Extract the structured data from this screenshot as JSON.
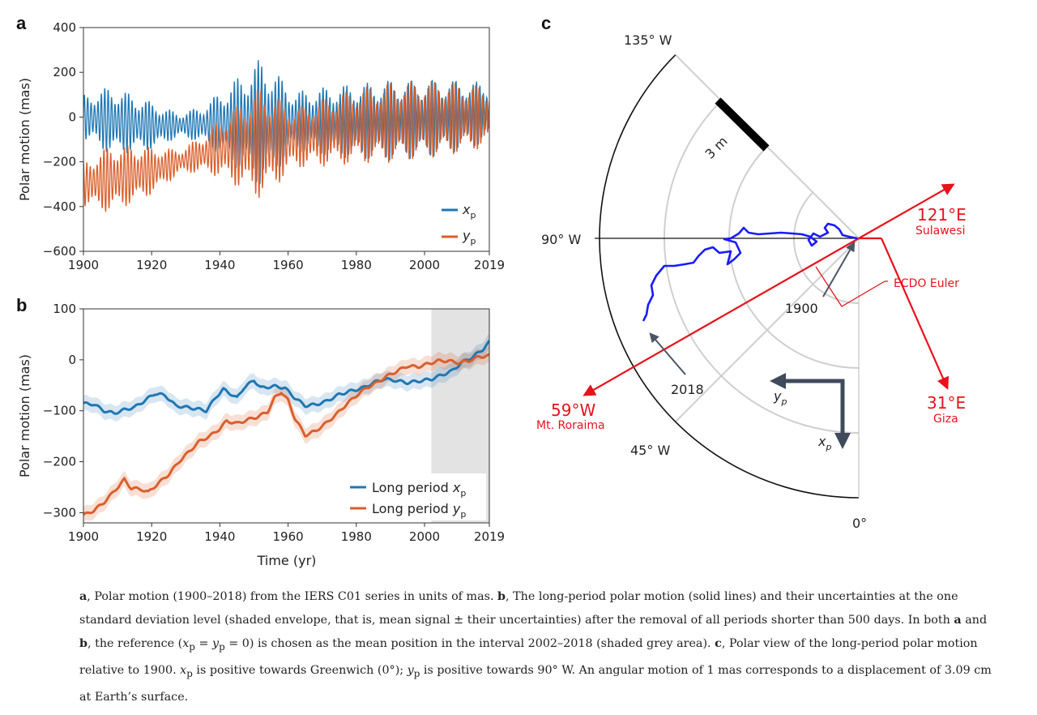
{
  "panels": {
    "a": {
      "letter": "a",
      "ylabel": "Polar motion (mas)",
      "yticks": [
        "400",
        "200",
        "0",
        "−200",
        "−400",
        "−600"
      ],
      "xticks": [
        "1900",
        "1920",
        "1940",
        "1960",
        "1980",
        "2000",
        "2019"
      ],
      "legend": [
        {
          "symbol": "x",
          "sub": "p",
          "color": "#1f77b4"
        },
        {
          "symbol": "y",
          "sub": "p",
          "color": "#d95f2b"
        }
      ]
    },
    "b": {
      "letter": "b",
      "ylabel": "Polar motion (mas)",
      "xlabel": "Time (yr)",
      "yticks": [
        "100",
        "0",
        "−100",
        "−200",
        "−300"
      ],
      "xticks": [
        "1900",
        "1920",
        "1940",
        "1960",
        "1980",
        "2000",
        "2019"
      ],
      "legend": [
        {
          "text": "Long period ",
          "symbol": "x",
          "sub": "p",
          "color": "#1f77b4"
        },
        {
          "text": "Long period ",
          "symbol": "y",
          "sub": "p",
          "color": "#d95f2b"
        }
      ]
    },
    "c": {
      "letter": "c",
      "angle_labels": [
        "135° W",
        "90° W",
        "45° W",
        "0°"
      ],
      "scale_label": "3 m",
      "year_labels": [
        "1900",
        "2018"
      ],
      "axis_labels": [
        {
          "symbol": "y",
          "sub": "p"
        },
        {
          "symbol": "x",
          "sub": "p"
        }
      ],
      "red_labels": {
        "sulawesi_deg": "121°E",
        "sulawesi_name": "Sulawesi",
        "ecdo": "ECDO Euler",
        "roraima_deg": "59°W",
        "roraima_name": "Mt. Roraima",
        "giza_deg": "31°E",
        "giza_name": "Giza"
      }
    }
  },
  "colors": {
    "blue": "#1f77b4",
    "orange": "#d95f2b",
    "path": "#1a1aff",
    "red": "#e8121b",
    "slate": "#3f4a5a"
  },
  "caption": {
    "a_label": "a",
    "a_text": ", Polar motion (1900–2018) from the IERS C01 series in units of mas. ",
    "b_label": "b",
    "b_text": ", The long-period polar motion (solid lines) and their uncertainties at the one standard deviation level (shaded envelope, that is, mean signal ± their uncertainties) after the removal of all periods shorter than 500 days. In both ",
    "and_a": "a",
    "and_word": " and ",
    "and_b": "b",
    "ref_text_1": ", the reference (",
    "ref_text_2": " = ",
    "ref_text_3": " = 0) is chosen as the mean position in the interval 2002–2018 (shaded grey area). ",
    "c_label": "c",
    "c_text": ", Polar view of the long-period polar motion relative to 1900. ",
    "xp_text": " is positive towards Greenwich (0°); ",
    "yp_text": " is positive towards 90° W. An angular motion of 1 mas corresponds to a displacement of 3.09 cm at Earth’s surface."
  },
  "chart_data": [
    {
      "type": "line",
      "panel": "a",
      "xlim": [
        1900,
        2019
      ],
      "ylim": [
        -600,
        400
      ],
      "ylabel": "Polar motion (mas)",
      "series": [
        {
          "name": "x_p",
          "note_amplitude_envelope": [
            [
              1900,
              110
            ],
            [
              1908,
              170
            ],
            [
              1918,
              130
            ],
            [
              1928,
              60
            ],
            [
              1935,
              90
            ],
            [
              1952,
              320
            ],
            [
              1962,
              150
            ],
            [
              1975,
              180
            ],
            [
              1990,
              200
            ],
            [
              2005,
              190
            ],
            [
              2019,
              150
            ]
          ],
          "mean": [
            [
              1900,
              0
            ],
            [
              1920,
              -40
            ],
            [
              1940,
              -30
            ],
            [
              1960,
              -20
            ],
            [
              1980,
              -20
            ],
            [
              2000,
              -10
            ],
            [
              2019,
              20
            ]
          ]
        },
        {
          "name": "y_p",
          "note_amplitude_envelope": [
            [
              1900,
              110
            ],
            [
              1908,
              170
            ],
            [
              1918,
              130
            ],
            [
              1928,
              60
            ],
            [
              1935,
              90
            ],
            [
              1952,
              280
            ],
            [
              1962,
              150
            ],
            [
              1975,
              180
            ],
            [
              1990,
              200
            ],
            [
              2005,
              190
            ],
            [
              2019,
              150
            ]
          ],
          "mean": [
            [
              1900,
              -300
            ],
            [
              1920,
              -240
            ],
            [
              1940,
              -140
            ],
            [
              1960,
              -100
            ],
            [
              1980,
              -40
            ],
            [
              2000,
              -10
            ],
            [
              2019,
              0
            ]
          ]
        }
      ]
    },
    {
      "type": "line",
      "panel": "b",
      "xlim": [
        1900,
        2019
      ],
      "ylim": [
        -320,
        100
      ],
      "xlabel": "Time (yr)",
      "ylabel": "Polar motion (mas)",
      "shaded_interval": [
        2002,
        2018
      ],
      "series": [
        {
          "name": "Long period x_p",
          "points": [
            [
              1900,
              -86
            ],
            [
              1903,
              -87
            ],
            [
              1906,
              -100
            ],
            [
              1909,
              -105
            ],
            [
              1912,
              -98
            ],
            [
              1915,
              -93
            ],
            [
              1918,
              -80
            ],
            [
              1921,
              -66
            ],
            [
              1924,
              -70
            ],
            [
              1927,
              -90
            ],
            [
              1930,
              -93
            ],
            [
              1933,
              -96
            ],
            [
              1936,
              -100
            ],
            [
              1939,
              -72
            ],
            [
              1941,
              -58
            ],
            [
              1943,
              -66
            ],
            [
              1945,
              -75
            ],
            [
              1947,
              -55
            ],
            [
              1950,
              -40
            ],
            [
              1952,
              -55
            ],
            [
              1956,
              -52
            ],
            [
              1959,
              -55
            ],
            [
              1962,
              -75
            ],
            [
              1965,
              -90
            ],
            [
              1968,
              -88
            ],
            [
              1971,
              -82
            ],
            [
              1975,
              -68
            ],
            [
              1978,
              -62
            ],
            [
              1982,
              -55
            ],
            [
              1985,
              -45
            ],
            [
              1988,
              -38
            ],
            [
              1991,
              -40
            ],
            [
              1995,
              -45
            ],
            [
              1998,
              -42
            ],
            [
              2002,
              -38
            ],
            [
              2005,
              -30
            ],
            [
              2008,
              -22
            ],
            [
              2011,
              -5
            ],
            [
              2014,
              5
            ],
            [
              2017,
              20
            ],
            [
              2019,
              35
            ]
          ],
          "band": 15
        },
        {
          "name": "Long period y_p",
          "points": [
            [
              1900,
              -305
            ],
            [
              1903,
              -296
            ],
            [
              1906,
              -280
            ],
            [
              1909,
              -258
            ],
            [
              1912,
              -235
            ],
            [
              1914,
              -252
            ],
            [
              1917,
              -254
            ],
            [
              1919,
              -260
            ],
            [
              1922,
              -242
            ],
            [
              1925,
              -225
            ],
            [
              1928,
              -200
            ],
            [
              1931,
              -180
            ],
            [
              1934,
              -160
            ],
            [
              1937,
              -150
            ],
            [
              1940,
              -135
            ],
            [
              1942,
              -120
            ],
            [
              1945,
              -125
            ],
            [
              1948,
              -118
            ],
            [
              1951,
              -112
            ],
            [
              1954,
              -102
            ],
            [
              1956,
              -75
            ],
            [
              1958,
              -63
            ],
            [
              1960,
              -80
            ],
            [
              1962,
              -115
            ],
            [
              1965,
              -148
            ],
            [
              1968,
              -140
            ],
            [
              1971,
              -125
            ],
            [
              1974,
              -108
            ],
            [
              1977,
              -88
            ],
            [
              1980,
              -70
            ],
            [
              1983,
              -55
            ],
            [
              1986,
              -45
            ],
            [
              1989,
              -32
            ],
            [
              1992,
              -22
            ],
            [
              1995,
              -12
            ],
            [
              1998,
              -14
            ],
            [
              2001,
              -8
            ],
            [
              2004,
              -2
            ],
            [
              2007,
              -2
            ],
            [
              2010,
              -6
            ],
            [
              2013,
              -2
            ],
            [
              2016,
              6
            ],
            [
              2019,
              8
            ]
          ],
          "band": 15
        }
      ]
    },
    {
      "type": "scatter",
      "panel": "c",
      "projection": "polar-sector",
      "angle_range_deg": [
        "0°",
        "135° W"
      ],
      "path_from": "1900",
      "path_to": "2018",
      "scale_bar": "3 m"
    }
  ]
}
